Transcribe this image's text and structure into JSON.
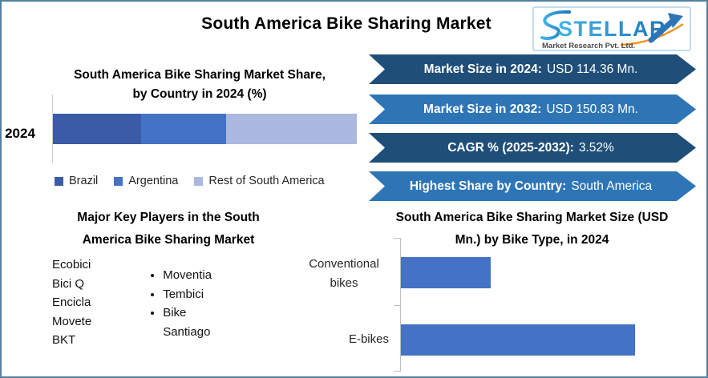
{
  "page_title": "South America Bike Sharing Market",
  "logo": {
    "brand": "STELLAR",
    "subtitle": "Market Research Pvt. Ltd."
  },
  "share_chart": {
    "title_line1": "South America Bike Sharing Market Share,",
    "title_line2": "by Country in 2024 (%)",
    "year_label": "2024",
    "legend": [
      {
        "label": "Brazil",
        "color": "#3A5BA6"
      },
      {
        "label": "Argentina",
        "color": "#4472C4"
      },
      {
        "label": "Rest of South America",
        "color": "#ABB8E0"
      }
    ]
  },
  "banners": [
    {
      "label": "Market Size in 2024:",
      "value": "USD 114.36 Mn.",
      "bg": "#1F4E79"
    },
    {
      "label": "Market Size in 2032:",
      "value": "USD 150.83 Mn.",
      "bg": "#2E75B6"
    },
    {
      "label": "CAGR % (2025-2032):",
      "value": "3.52%",
      "bg": "#1F4E79"
    },
    {
      "label": "Highest Share by Country:",
      "value": "South America",
      "bg": "#2E75B6"
    }
  ],
  "players": {
    "title_line1": "Major Key Players in the South",
    "title_line2": "America Bike Sharing Market",
    "column1": [
      "Ecobici",
      "Bici Q",
      "Encicla",
      "Movete",
      "BKT"
    ],
    "column2": [
      "Moventia",
      "Tembici",
      "Bike Santiago"
    ]
  },
  "size_chart": {
    "title_line1": "South America Bike Sharing Market Size (USD",
    "title_line2": "Mn.) by Bike Type, in 2024"
  },
  "chart_data": [
    {
      "type": "bar",
      "subtype": "stacked-horizontal",
      "title": "South America Bike Sharing Market Share, by Country in 2024 (%)",
      "categories": [
        "2024"
      ],
      "series": [
        {
          "name": "Brazil",
          "values": [
            29
          ],
          "color": "#3A5BA6"
        },
        {
          "name": "Argentina",
          "values": [
            28
          ],
          "color": "#4472C4"
        },
        {
          "name": "Rest of South America",
          "values": [
            43
          ],
          "color": "#ABB8E0"
        }
      ],
      "unit": "%",
      "xlim": [
        0,
        100
      ],
      "legend_position": "bottom",
      "grid": false,
      "note": "segment shares estimated from bar widths; no data labels shown"
    },
    {
      "type": "bar",
      "subtype": "horizontal",
      "title": "South America Bike Sharing Market Size (USD Mn.) by Bike Type, in 2024",
      "categories": [
        "Conventional bikes",
        "E-bikes"
      ],
      "values": [
        31.7,
        82.7
      ],
      "unit": "USD Mn.",
      "color": "#4472C4",
      "grid": false,
      "note": "axis unlabeled; values estimated from relative bar lengths against 2024 total of USD 114.36 Mn."
    }
  ],
  "colors": {
    "banner_dark": "#1F4E79",
    "banner_blue": "#2E75B6",
    "bar_blue": "#4472C4",
    "frame": "#53809F",
    "logo_orange": "#F7941D"
  }
}
